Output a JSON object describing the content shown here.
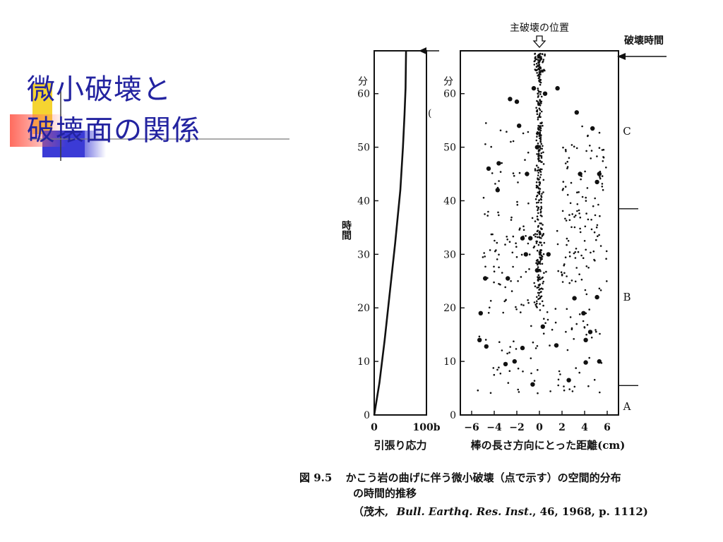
{
  "slide": {
    "title_line1": "微小破壊と",
    "title_line2": "破壊面の関係"
  },
  "figure": {
    "caption_num": "図 9.5",
    "caption_line1": "かこう岩の曲げに伴う微小破壊（点で示す）の空間的分布",
    "caption_line2": "の時間的推移",
    "citation_a": "（茂木,",
    "citation_journal": "Bull. Earthq. Res. Inst.",
    "citation_b": ", 46, 1968, p. 1112)"
  },
  "chart_data": [
    {
      "type": "line",
      "xlabel": "引張り応力",
      "ylabel": "時間",
      "y_unit": "分",
      "x_ticks": [
        "0",
        "100b"
      ],
      "y_ticks": [
        0,
        10,
        20,
        30,
        40,
        50,
        60
      ],
      "xlim": [
        0,
        100
      ],
      "ylim": [
        0,
        68
      ],
      "series": [
        {
          "x": [
            0,
            10,
            20,
            30,
            40,
            50,
            55,
            58,
            60,
            61
          ],
          "y": [
            0,
            6,
            14,
            23,
            32,
            42,
            50,
            56,
            61,
            68
          ]
        }
      ]
    },
    {
      "type": "scatter",
      "xlabel": "棒の長さ方向にとった距離(cm)",
      "ylabel": "時間",
      "y_unit": "分",
      "top_label": "主破壊の位置",
      "right_label": "破壊時間",
      "x_ticks": [
        -6,
        -4,
        -2,
        0,
        2,
        4,
        6
      ],
      "y_ticks": [
        0,
        10,
        20,
        30,
        40,
        50,
        60
      ],
      "xlim": [
        -7,
        7
      ],
      "ylim": [
        0,
        68
      ],
      "phases": [
        {
          "label": "A",
          "from": 0,
          "to": 5.5
        },
        {
          "label": "B",
          "from": 5.5,
          "to": 38.5
        },
        {
          "label": "C",
          "from": 38.5,
          "to": 68
        }
      ],
      "large_events": [
        [
          -4.8,
          25.5
        ],
        [
          -5.2,
          19
        ],
        [
          -4.5,
          46
        ],
        [
          -3.7,
          42
        ],
        [
          -3,
          9.5
        ],
        [
          -2.6,
          59
        ],
        [
          -2,
          58.5
        ],
        [
          -1.8,
          54
        ],
        [
          -1.1,
          45
        ],
        [
          -1.5,
          33
        ],
        [
          -1.2,
          30
        ],
        [
          0.5,
          60
        ],
        [
          0.8,
          30
        ],
        [
          1.6,
          61
        ],
        [
          2.6,
          6.5
        ],
        [
          3.1,
          21.8
        ],
        [
          3.3,
          56.5
        ],
        [
          3.6,
          45
        ],
        [
          4.1,
          14
        ],
        [
          4.1,
          9.8
        ],
        [
          4.5,
          15.5
        ],
        [
          4.7,
          53.5
        ],
        [
          5.1,
          22
        ],
        [
          5.3,
          10
        ],
        [
          5.1,
          43.5
        ],
        [
          -5.3,
          14
        ],
        [
          -3.6,
          47
        ],
        [
          -2.2,
          10
        ],
        [
          -0.5,
          61
        ],
        [
          -4.7,
          12.8
        ],
        [
          0.3,
          16.5
        ],
        [
          1.5,
          13
        ],
        [
          -2.8,
          25.5
        ],
        [
          3.9,
          19
        ],
        [
          -0.2,
          27
        ],
        [
          5.3,
          45
        ],
        [
          -1.5,
          12.5
        ],
        [
          -0.8,
          33
        ],
        [
          -0.6,
          5.7
        ],
        [
          -0.2,
          50
        ]
      ]
    }
  ]
}
